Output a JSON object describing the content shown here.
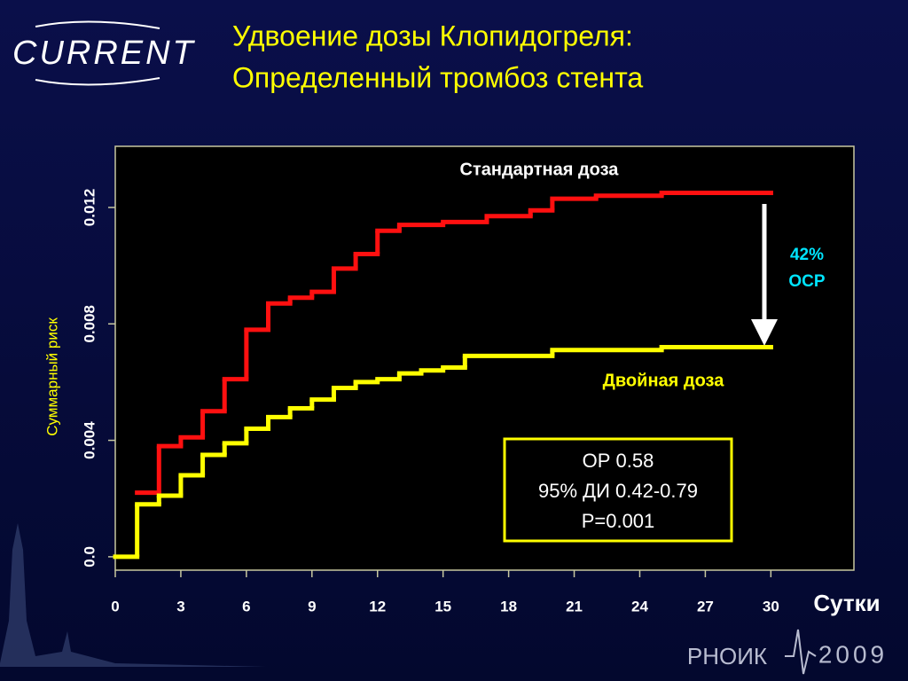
{
  "logo": "CURRENT",
  "footer": {
    "org": "РНОИК",
    "year": "2009"
  },
  "chart_data": {
    "type": "step",
    "title": [
      "Удвоение дозы Клопидогреля:",
      "Определенный тромбоз стента"
    ],
    "x_label": "Сутки",
    "y_label": "Суммарный  риск",
    "xlim": [
      0,
      33.8
    ],
    "ylim": [
      -0.00046,
      0.0141
    ],
    "xticks": [
      0,
      3,
      6,
      9,
      12,
      15,
      18,
      21,
      24,
      27,
      30
    ],
    "yticks": [
      {
        "value": 0,
        "label": "0.0"
      },
      0.004,
      0.008,
      0.012
    ],
    "series": [
      {
        "name": "Стандартная доза",
        "color": "#ff1010",
        "x": [
          1,
          2,
          3,
          4,
          5,
          6,
          7,
          8,
          9,
          10,
          11,
          12,
          13,
          15,
          17,
          19,
          20,
          22,
          25,
          30
        ],
        "values": [
          0.0022,
          0.0038,
          0.0041,
          0.005,
          0.0061,
          0.0078,
          0.0087,
          0.0089,
          0.0091,
          0.0099,
          0.0104,
          0.0112,
          0.0114,
          0.0115,
          0.0117,
          0.0119,
          0.0123,
          0.0124,
          0.0125,
          0.0125
        ]
      },
      {
        "name": "Двойная доза",
        "color": "#ffff00",
        "x": [
          0,
          1,
          2,
          3,
          4,
          5,
          6,
          7,
          8,
          9,
          10,
          11,
          12,
          13,
          14,
          15,
          16,
          20,
          25,
          30
        ],
        "values": [
          0,
          0.0018,
          0.0021,
          0.0028,
          0.0035,
          0.0039,
          0.0044,
          0.0048,
          0.0051,
          0.0054,
          0.0058,
          0.006,
          0.0061,
          0.0063,
          0.0064,
          0.0065,
          0.0069,
          0.0071,
          0.0072,
          0.0072
        ]
      }
    ],
    "annotations": {
      "reduction": [
        "42%",
        "ОСР"
      ],
      "stats": [
        "ОР 0.58",
        "95% ДИ 0.42-0.79",
        "P=0.001"
      ]
    }
  }
}
